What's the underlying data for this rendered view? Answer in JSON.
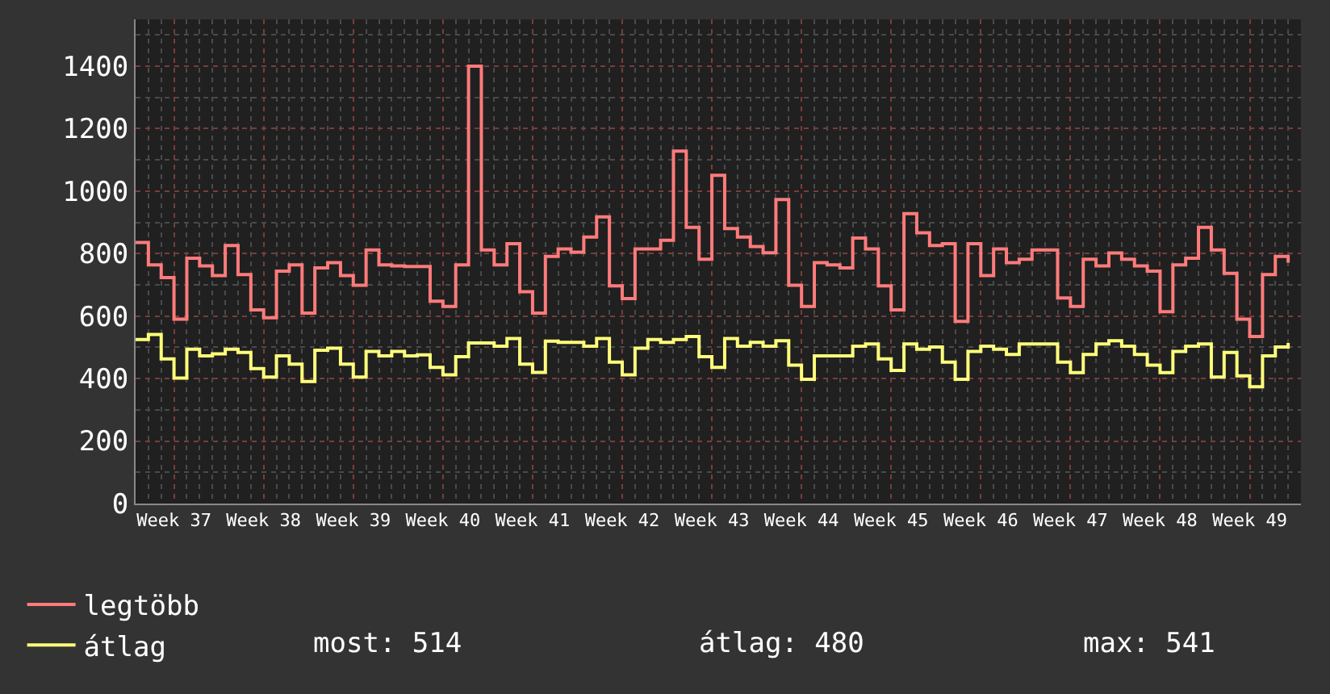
{
  "chart_data": {
    "type": "step",
    "categories": [
      null,
      null,
      null,
      "Week 37",
      null,
      null,
      null,
      null,
      null,
      null,
      "Week 38",
      null,
      null,
      null,
      null,
      null,
      null,
      "Week 39",
      null,
      null,
      null,
      null,
      null,
      null,
      "Week 40",
      null,
      null,
      null,
      null,
      null,
      null,
      "Week 41",
      null,
      null,
      null,
      null,
      null,
      null,
      "Week 42",
      null,
      null,
      null,
      null,
      null,
      null,
      "Week 43",
      null,
      null,
      null,
      null,
      null,
      null,
      "Week 44",
      null,
      null,
      null,
      null,
      null,
      null,
      "Week 45",
      null,
      null,
      null,
      null,
      null,
      null,
      "Week 46",
      null,
      null,
      null,
      null,
      null,
      null,
      "Week 47",
      null,
      null,
      null,
      null,
      null,
      null,
      "Week 48",
      null,
      null,
      null,
      null,
      null,
      null,
      "Week 49",
      null,
      null,
      null
    ],
    "series": [
      {
        "name": "legtöbb",
        "color": "#ff7b7b",
        "values": [
          836,
          764,
          723,
          590,
          785,
          761,
          730,
          826,
          733,
          620,
          595,
          744,
          764,
          610,
          754,
          771,
          730,
          699,
          812,
          764,
          761,
          759,
          759,
          648,
          631,
          764,
          1400,
          812,
          764,
          832,
          678,
          610,
          791,
          815,
          805,
          853,
          918,
          697,
          656,
          815,
          815,
          843,
          1128,
          884,
          782,
          1051,
          880,
          853,
          823,
          803,
          973,
          699,
          631,
          771,
          764,
          754,
          850,
          815,
          697,
          620,
          928,
          867,
          826,
          832,
          583,
          832,
          730,
          815,
          771,
          782,
          812,
          812,
          658,
          631,
          782,
          761,
          802,
          782,
          761,
          744,
          614,
          764,
          785,
          884,
          812,
          737,
          590,
          535,
          733,
          791,
          771
        ]
      },
      {
        "name": "átlag",
        "color": "#ffff7b",
        "values": [
          525,
          541,
          463,
          402,
          494,
          473,
          479,
          494,
          484,
          432,
          405,
          473,
          446,
          391,
          491,
          497,
          446,
          405,
          487,
          473,
          487,
          473,
          476,
          436,
          412,
          470,
          514,
          514,
          504,
          528,
          446,
          420,
          520,
          516,
          516,
          504,
          528,
          453,
          412,
          497,
          525,
          516,
          525,
          535,
          470,
          436,
          528,
          504,
          516,
          504,
          521,
          443,
          398,
          473,
          473,
          473,
          504,
          511,
          463,
          426,
          511,
          494,
          501,
          453,
          398,
          487,
          504,
          494,
          477,
          511,
          511,
          511,
          453,
          419,
          477,
          511,
          521,
          504,
          477,
          443,
          419,
          487,
          504,
          511,
          405,
          484,
          409,
          374,
          473,
          501,
          514
        ]
      }
    ],
    "ylim": [
      0,
      1550
    ],
    "yticks": [
      0,
      200,
      400,
      600,
      800,
      1000,
      1200,
      1400
    ],
    "grid": true,
    "legend": "bottom",
    "annotations": [
      "most: 514",
      "átlag: 480",
      "max: 541"
    ]
  }
}
